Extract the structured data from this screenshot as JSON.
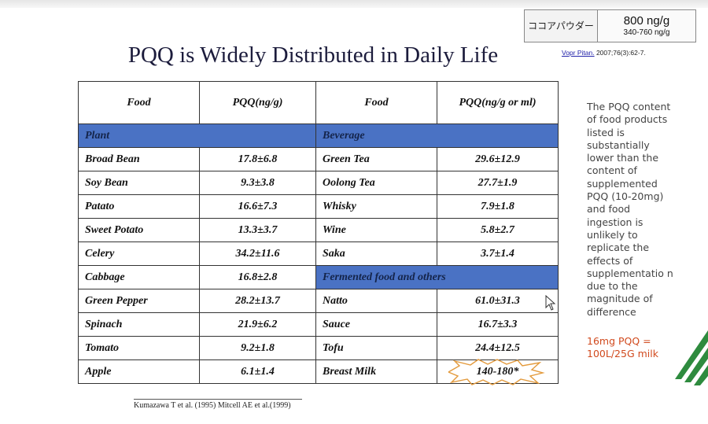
{
  "slide": {
    "title": "PQQ is Widely Distributed in Daily Life",
    "cocoa": {
      "label": "ココアパウダー",
      "value": "800 ng/g",
      "range": "340-760 ng/g"
    },
    "ref_top": {
      "journal": "Vopr Pitan.",
      "citation": " 2007;76(3):62-7."
    },
    "headers": [
      "Food",
      "PQQ(ng/g)",
      "Food",
      "PQQ(ng/g or ml)"
    ],
    "section_left_1": "Plant",
    "section_right_1": "Beverage",
    "section_right_2": "Fermented food and others",
    "rows": [
      {
        "lf": "Broad Bean",
        "lv": "17.8±6.8",
        "rf": "Green Tea",
        "rv": "29.6±12.9"
      },
      {
        "lf": "Soy Bean",
        "lv": "9.3±3.8",
        "rf": "Oolong Tea",
        "rv": "27.7±1.9"
      },
      {
        "lf": "Patato",
        "lv": "16.6±7.3",
        "rf": "Whisky",
        "rv": "7.9±1.8"
      },
      {
        "lf": "Sweet Potato",
        "lv": "13.3±3.7",
        "rf": "Wine",
        "rv": "5.8±2.7"
      },
      {
        "lf": "Celery",
        "lv": "34.2±11.6",
        "rf": "Saka",
        "rv": "3.7±1.4"
      },
      {
        "lf": "Cabbage",
        "lv": "16.8±2.8"
      },
      {
        "lf": "Green Pepper",
        "lv": "28.2±13.7",
        "rf": "Natto",
        "rv": "61.0±31.3"
      },
      {
        "lf": "Spinach",
        "lv": "21.9±6.2",
        "rf": "Sauce",
        "rv": "16.7±3.3"
      },
      {
        "lf": "Tomato",
        "lv": "9.2±1.8",
        "rf": "Tofu",
        "rv": "24.4±12.5"
      },
      {
        "lf": "Apple",
        "lv": "6.1±1.4",
        "rf": "Breast Milk",
        "rv": "140-180*"
      }
    ],
    "ref_bottom": "Kumazawa T et al. (1995)  Mitcell AE et al.(1999)",
    "side_note": "The PQQ content of food products listed is substantially lower than the content of supplemented PQQ (10-20mg) and food ingestion is unlikely to replicate the effects of supplementatio n due to the magnitude of difference",
    "side_note_red": "16mg PQQ = 100L/25G milk",
    "colors": {
      "section_fill": "#4a72c4",
      "note_red": "#d14a1e",
      "stripes": "#2e8b3e"
    },
    "icons": [
      "cursor-icon",
      "starburst-icon",
      "green-stripes-logo"
    ]
  }
}
